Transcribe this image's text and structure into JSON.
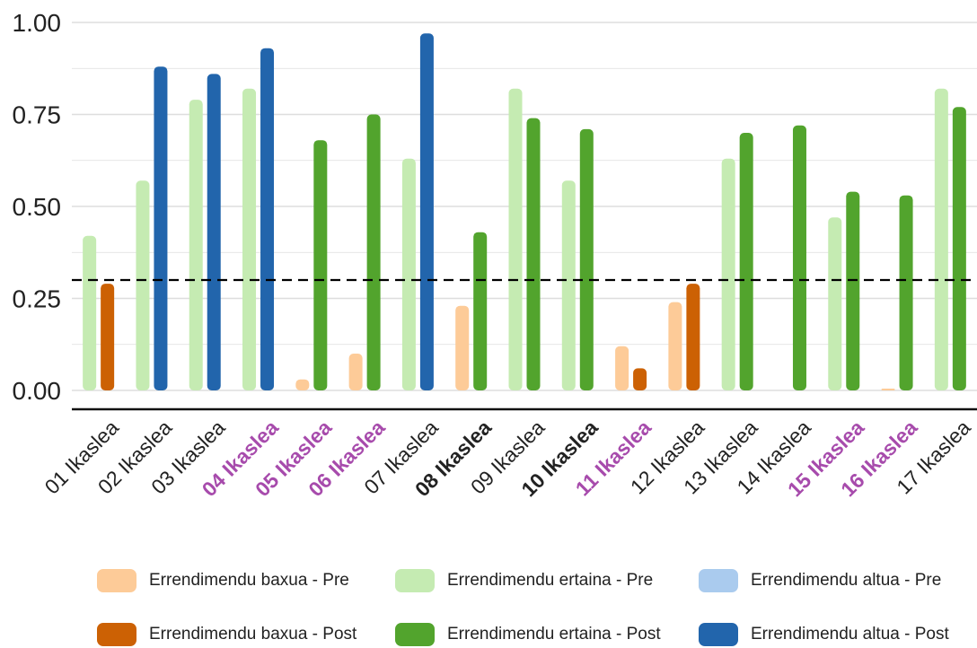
{
  "chart_data": {
    "type": "bar",
    "ylim": [
      0,
      1.0
    ],
    "y_ticks": [
      "0.00",
      "0.25",
      "0.50",
      "0.75",
      "1.00"
    ],
    "threshold": 0.3,
    "grid": true,
    "categories": [
      {
        "label": "01 Ikaslea",
        "style": "normal"
      },
      {
        "label": "02 Ikaslea",
        "style": "normal"
      },
      {
        "label": "03 Ikaslea",
        "style": "normal"
      },
      {
        "label": "04 Ikaslea",
        "style": "highlight"
      },
      {
        "label": "05 Ikaslea",
        "style": "highlight"
      },
      {
        "label": "06 Ikaslea",
        "style": "highlight"
      },
      {
        "label": "07 Ikaslea",
        "style": "normal"
      },
      {
        "label": "08 Ikaslea",
        "style": "bold"
      },
      {
        "label": "09 Ikaslea",
        "style": "normal"
      },
      {
        "label": "10 Ikaslea",
        "style": "bold"
      },
      {
        "label": "11 Ikaslea",
        "style": "highlight"
      },
      {
        "label": "12 Ikaslea",
        "style": "normal"
      },
      {
        "label": "13 Ikaslea",
        "style": "normal"
      },
      {
        "label": "14 Ikaslea",
        "style": "normal"
      },
      {
        "label": "15 Ikaslea",
        "style": "highlight"
      },
      {
        "label": "16 Ikaslea",
        "style": "highlight"
      },
      {
        "label": "17 Ikaslea",
        "style": "normal"
      }
    ],
    "pre": [
      {
        "value": 0.42,
        "level": "ertaina"
      },
      {
        "value": 0.57,
        "level": "ertaina"
      },
      {
        "value": 0.79,
        "level": "ertaina"
      },
      {
        "value": 0.82,
        "level": "ertaina"
      },
      {
        "value": 0.03,
        "level": "baxua"
      },
      {
        "value": 0.1,
        "level": "baxua"
      },
      {
        "value": 0.63,
        "level": "ertaina"
      },
      {
        "value": 0.23,
        "level": "baxua"
      },
      {
        "value": 0.82,
        "level": "ertaina"
      },
      {
        "value": 0.57,
        "level": "ertaina"
      },
      {
        "value": 0.12,
        "level": "baxua"
      },
      {
        "value": 0.24,
        "level": "baxua"
      },
      {
        "value": 0.63,
        "level": "ertaina"
      },
      {
        "value": 0.0,
        "level": "ertaina"
      },
      {
        "value": 0.47,
        "level": "ertaina"
      },
      {
        "value": 0.005,
        "level": "baxua"
      },
      {
        "value": 0.82,
        "level": "ertaina"
      }
    ],
    "post": [
      {
        "value": 0.29,
        "level": "baxua"
      },
      {
        "value": 0.88,
        "level": "altua"
      },
      {
        "value": 0.86,
        "level": "altua"
      },
      {
        "value": 0.93,
        "level": "altua"
      },
      {
        "value": 0.68,
        "level": "ertaina"
      },
      {
        "value": 0.75,
        "level": "ertaina"
      },
      {
        "value": 0.97,
        "level": "altua"
      },
      {
        "value": 0.43,
        "level": "ertaina"
      },
      {
        "value": 0.74,
        "level": "ertaina"
      },
      {
        "value": 0.71,
        "level": "ertaina"
      },
      {
        "value": 0.06,
        "level": "baxua"
      },
      {
        "value": 0.29,
        "level": "baxua"
      },
      {
        "value": 0.7,
        "level": "ertaina"
      },
      {
        "value": 0.72,
        "level": "ertaina"
      },
      {
        "value": 0.54,
        "level": "ertaina"
      },
      {
        "value": 0.53,
        "level": "ertaina"
      },
      {
        "value": 0.77,
        "level": "ertaina"
      }
    ],
    "colors": {
      "baxua_pre": "#fdcb98",
      "baxua_post": "#cc6104",
      "ertaina_pre": "#c5ebb2",
      "ertaina_post": "#52a42d",
      "altua_pre": "#aacbee",
      "altua_post": "#2265ac",
      "highlight_text": "#a74bac",
      "normal_text": "#222222",
      "grid": "#dedede",
      "threshold": "#000000"
    },
    "legend": [
      {
        "label": "Errendimendu baxua - Pre",
        "color_key": "baxua_pre"
      },
      {
        "label": "Errendimendu ertaina - Pre",
        "color_key": "ertaina_pre"
      },
      {
        "label": "Errendimendu altua - Pre",
        "color_key": "altua_pre"
      },
      {
        "label": "Errendimendu baxua - Post",
        "color_key": "baxua_post"
      },
      {
        "label": "Errendimendu ertaina - Post",
        "color_key": "ertaina_post"
      },
      {
        "label": "Errendimendu altua - Post",
        "color_key": "altua_post"
      }
    ]
  }
}
